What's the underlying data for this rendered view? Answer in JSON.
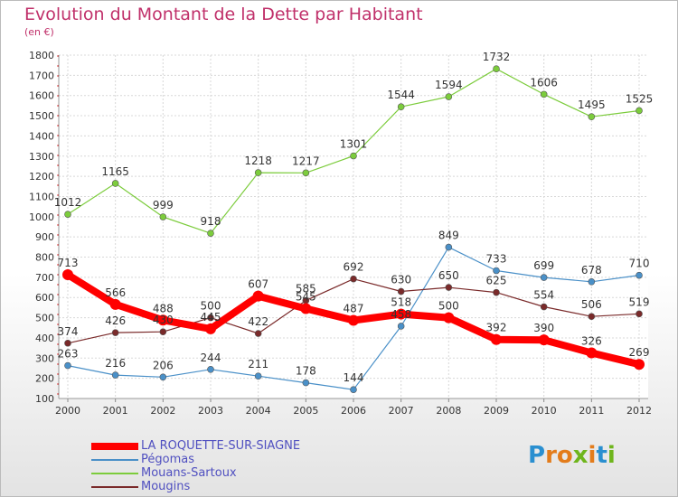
{
  "header": {
    "title": "Evolution du Montant de la Dette par Habitant",
    "subtitle": "(en €)"
  },
  "brand": {
    "name": "Proxiti",
    "letters": [
      {
        "ch": "P",
        "color": "#2a8fd0"
      },
      {
        "ch": "r",
        "color": "#e37c1b"
      },
      {
        "ch": "o",
        "color": "#e37c1b"
      },
      {
        "ch": "x",
        "color": "#6fb51c"
      },
      {
        "ch": "i",
        "color": "#e37c1b"
      },
      {
        "ch": "t",
        "color": "#2a8fd0"
      },
      {
        "ch": "i",
        "color": "#6fb51c"
      }
    ]
  },
  "chart_data": {
    "type": "line",
    "title": "Evolution du Montant de la Dette par Habitant",
    "subtitle": "(en €)",
    "x": [
      "2000",
      "2001",
      "2002",
      "2003",
      "2004",
      "2005",
      "2006",
      "2007",
      "2008",
      "2009",
      "2010",
      "2011",
      "2012"
    ],
    "ylim": [
      100,
      1800
    ],
    "yticks": [
      100,
      200,
      300,
      400,
      500,
      600,
      700,
      800,
      900,
      1000,
      1100,
      1200,
      1300,
      1400,
      1500,
      1600,
      1700,
      1800
    ],
    "grid": true,
    "legend_position": "bottom-left",
    "series": [
      {
        "name": "LA ROQUETTE-SUR-SIAGNE",
        "color": "#ff0000",
        "values": [
          713,
          566,
          488,
          445,
          607,
          545,
          487,
          518,
          500,
          392,
          390,
          326,
          269
        ]
      },
      {
        "name": "Pégomas",
        "color": "#4a90c8",
        "values": [
          263,
          216,
          206,
          244,
          211,
          178,
          144,
          458,
          849,
          733,
          699,
          678,
          710
        ]
      },
      {
        "name": "Mouans-Sartoux",
        "color": "#7ccc3c",
        "values": [
          1012,
          1165,
          999,
          918,
          1218,
          1217,
          1301,
          1544,
          1594,
          1732,
          1606,
          1495,
          1525
        ]
      },
      {
        "name": "Mougins",
        "color": "#7a2a2a",
        "values": [
          374,
          426,
          430,
          500,
          422,
          585,
          692,
          630,
          650,
          625,
          554,
          506,
          519
        ]
      }
    ],
    "data_labels": [
      [
        "713",
        "566",
        "488",
        "445",
        "607",
        "545",
        "487",
        "518",
        "500",
        "392",
        "390",
        "326",
        "269"
      ],
      [
        "263",
        "216",
        "206",
        "244",
        "211",
        "178",
        "144",
        "458",
        "849",
        "733",
        "699",
        "678",
        "710"
      ],
      [
        "1012",
        "1165",
        "999",
        "918",
        "1218",
        "1217",
        "1301",
        "1544",
        "1594",
        "1732",
        "1606",
        "1495",
        "1525"
      ],
      [
        "374",
        "426",
        "430",
        "500",
        "422",
        "585",
        "692",
        "630",
        "650",
        "625",
        "554",
        "506",
        "519"
      ]
    ]
  }
}
